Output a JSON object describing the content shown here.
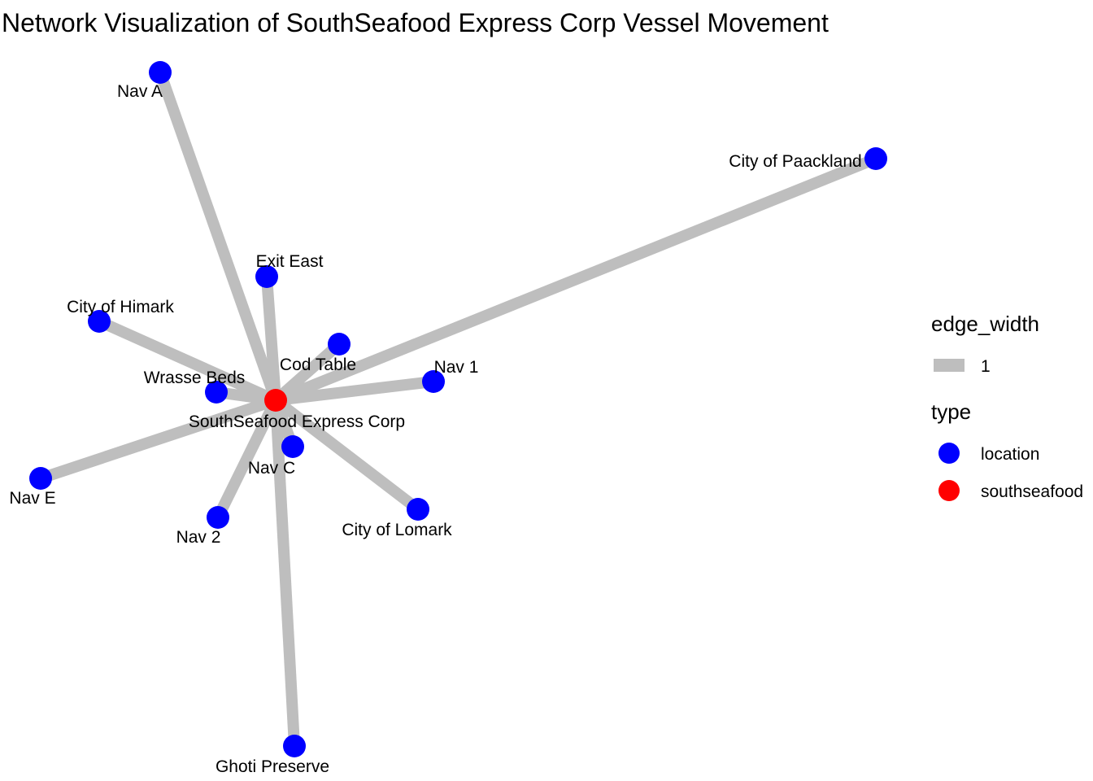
{
  "title": "Network Visualization of SouthSeafood Express Corp Vessel Movement",
  "colors": {
    "edge": "#bebebe",
    "location": "#0000ff",
    "southseafood": "#ff0000"
  },
  "nodes": [
    {
      "id": "southseafood",
      "label": "SouthSeafood Express Corp",
      "type": "southseafood"
    },
    {
      "id": "nav-a",
      "label": "Nav A",
      "type": "location"
    },
    {
      "id": "city-of-paackland",
      "label": "City of Paackland",
      "type": "location"
    },
    {
      "id": "exit-east",
      "label": "Exit East",
      "type": "location"
    },
    {
      "id": "city-of-himark",
      "label": "City of Himark",
      "type": "location"
    },
    {
      "id": "cod-table",
      "label": "Cod Table",
      "type": "location"
    },
    {
      "id": "nav-1",
      "label": "Nav 1",
      "type": "location"
    },
    {
      "id": "wrasse-beds",
      "label": "Wrasse Beds",
      "type": "location"
    },
    {
      "id": "nav-c",
      "label": "Nav C",
      "type": "location"
    },
    {
      "id": "nav-e",
      "label": "Nav E",
      "type": "location"
    },
    {
      "id": "nav-2",
      "label": "Nav 2",
      "type": "location"
    },
    {
      "id": "city-of-lomark",
      "label": "City of Lomark",
      "type": "location"
    },
    {
      "id": "ghoti-preserve",
      "label": "Ghoti Preserve",
      "type": "location"
    }
  ],
  "edges": [
    {
      "from": "southseafood",
      "to": "nav-a",
      "edge_width": 1
    },
    {
      "from": "southseafood",
      "to": "city-of-paackland",
      "edge_width": 1
    },
    {
      "from": "southseafood",
      "to": "exit-east",
      "edge_width": 1
    },
    {
      "from": "southseafood",
      "to": "city-of-himark",
      "edge_width": 1
    },
    {
      "from": "southseafood",
      "to": "cod-table",
      "edge_width": 1
    },
    {
      "from": "southseafood",
      "to": "nav-1",
      "edge_width": 1
    },
    {
      "from": "southseafood",
      "to": "wrasse-beds",
      "edge_width": 1
    },
    {
      "from": "southseafood",
      "to": "nav-c",
      "edge_width": 1
    },
    {
      "from": "southseafood",
      "to": "nav-e",
      "edge_width": 1
    },
    {
      "from": "southseafood",
      "to": "nav-2",
      "edge_width": 1
    },
    {
      "from": "southseafood",
      "to": "city-of-lomark",
      "edge_width": 1
    },
    {
      "from": "southseafood",
      "to": "ghoti-preserve",
      "edge_width": 1
    }
  ],
  "legend": {
    "edge_width": {
      "title": "edge_width",
      "entries": [
        {
          "label": "1"
        }
      ]
    },
    "type": {
      "title": "type",
      "entries": [
        {
          "label": "location",
          "type": "location"
        },
        {
          "label": "southseafood",
          "type": "southseafood"
        }
      ]
    }
  }
}
